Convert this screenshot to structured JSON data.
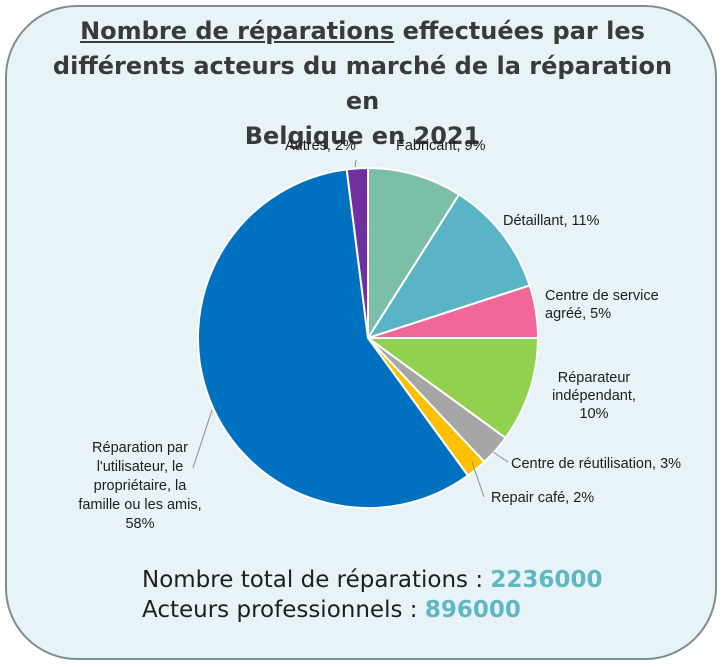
{
  "title": {
    "underlined": "Nombre de réparations",
    "rest_line1": " effectuées par les",
    "line2": "différents acteurs du marché de la réparation en",
    "line3": "Belgique en 2021"
  },
  "chart_data": {
    "type": "pie",
    "categories": [
      "Fabricant",
      "Détaillant",
      "Centre de service agréé",
      "Réparateur indépendant",
      "Centre de réutilisation",
      "Repair café",
      "Réparation par l'utilisateur, le propriétaire, la famille ou les amis",
      "Autres"
    ],
    "values": [
      9,
      11,
      5,
      10,
      3,
      2,
      58,
      2
    ],
    "unit": "%",
    "colors": [
      "#7bbfa9",
      "#5ab4c5",
      "#f0679a",
      "#92d050",
      "#a6a6a6",
      "#ffc000",
      "#0070c0",
      "#7030a0"
    ],
    "labels": [
      [
        "Fabricant, 9%"
      ],
      [
        "Détaillant, 11%"
      ],
      [
        "Centre de service",
        "agréé, 5%"
      ],
      [
        "Réparateur",
        "indépendant,",
        "10%"
      ],
      [
        "Centre de réutilisation, 3%"
      ],
      [
        "Repair café, 2%"
      ],
      [
        "Réparation par",
        "l'utilisateur, le",
        "propriétaire, la",
        "famille ou les amis,",
        "58%"
      ],
      [
        "Autres, 2%"
      ]
    ]
  },
  "totals": {
    "reparations_label": "Nombre total de réparations : ",
    "reparations_value": "2236000",
    "acteurs_label": "Acteurs professionnels : ",
    "acteurs_value": "896000"
  }
}
